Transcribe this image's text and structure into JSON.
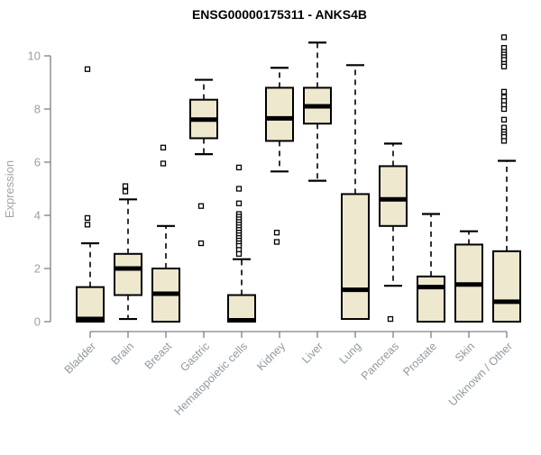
{
  "chart_data": {
    "type": "boxplot",
    "title": "ENSG00000175311 - ANKS4B",
    "ylabel": "Expression",
    "xlabel": "",
    "ylim": [
      0,
      10.8
    ],
    "yticks": [
      0,
      2,
      4,
      6,
      8,
      10
    ],
    "grid": false,
    "legend": false,
    "categories": [
      "Bladder",
      "Brain",
      "Breast",
      "Gastric",
      "Hematopoietic cells",
      "Kidney",
      "Liver",
      "Lung",
      "Pancreas",
      "Prostate",
      "Skin",
      "Unknown / Other"
    ],
    "boxes": [
      {
        "label": "Bladder",
        "low": null,
        "q1": 0,
        "median": 0.1,
        "q3": 1.3,
        "high": 2.95,
        "outliers": [
          9.5,
          3.9,
          3.65
        ]
      },
      {
        "label": "Brain",
        "low": 0.1,
        "q1": 1.0,
        "median": 2.0,
        "q3": 2.55,
        "high": 4.6,
        "outliers": [
          5.1,
          4.9
        ]
      },
      {
        "label": "Breast",
        "low": null,
        "q1": 0,
        "median": 1.05,
        "q3": 2.0,
        "high": 3.6,
        "outliers": [
          6.55,
          5.95
        ]
      },
      {
        "label": "Gastric",
        "low": 6.3,
        "q1": 6.9,
        "median": 7.6,
        "q3": 8.35,
        "high": 9.1,
        "outliers": [
          4.35,
          2.95
        ]
      },
      {
        "label": "Hematopoietic cells",
        "low": null,
        "q1": 0,
        "median": 0.05,
        "q3": 1.0,
        "high": 2.35,
        "outliers": [
          5.8,
          5.0,
          4.45,
          4.05,
          3.95,
          3.85,
          3.75,
          3.65,
          3.55,
          3.45,
          3.35,
          3.25,
          3.15,
          3.05,
          2.95,
          2.85,
          2.7,
          2.55
        ]
      },
      {
        "label": "Kidney",
        "low": 5.65,
        "q1": 6.8,
        "median": 7.65,
        "q3": 8.8,
        "high": 9.55,
        "outliers": [
          3.35,
          3.0
        ]
      },
      {
        "label": "Liver",
        "low": 5.3,
        "q1": 7.45,
        "median": 8.1,
        "q3": 8.8,
        "high": 10.5,
        "outliers": []
      },
      {
        "label": "Lung",
        "low": null,
        "q1": 0.1,
        "median": 1.2,
        "q3": 4.8,
        "high": 9.65,
        "outliers": []
      },
      {
        "label": "Pancreas",
        "low": 1.35,
        "q1": 3.6,
        "median": 4.6,
        "q3": 5.85,
        "high": 6.7,
        "outliers": [
          0.1
        ]
      },
      {
        "label": "Prostate",
        "low": null,
        "q1": 0,
        "median": 1.3,
        "q3": 1.7,
        "high": 4.05,
        "outliers": []
      },
      {
        "label": "Skin",
        "low": null,
        "q1": 0,
        "median": 1.4,
        "q3": 2.9,
        "high": 3.4,
        "outliers": []
      },
      {
        "label": "Unknown / Other",
        "low": null,
        "q1": 0,
        "median": 0.75,
        "q3": 2.65,
        "high": 6.05,
        "outliers": [
          10.7,
          10.3,
          10.15,
          10.05,
          9.95,
          9.85,
          9.7,
          9.6,
          8.65,
          8.45,
          8.3,
          8.15,
          8.0,
          7.6,
          7.3,
          7.15,
          7.05,
          6.95,
          6.8
        ]
      }
    ],
    "colors": {
      "box_fill": "#EDE8CE",
      "box_border": "#000000",
      "median": "#000000",
      "whisker": "#000000",
      "outlier_fill": "#FFFFFF",
      "axis_line": "#808080",
      "tick_label": "#96A0AA",
      "category_label": "#8F99A1",
      "ylabel_color": "#9EA4A9",
      "title_color": "#000000",
      "background": "#FFFFFF"
    }
  }
}
